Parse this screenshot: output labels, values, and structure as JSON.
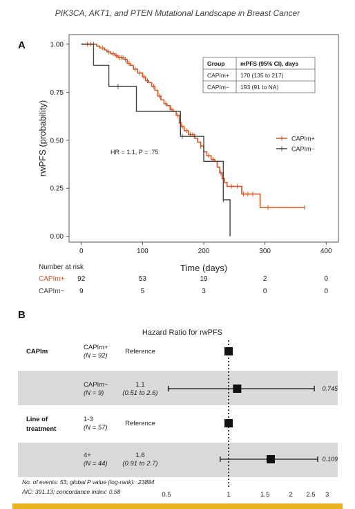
{
  "page_title": "PIK3CA, AKT1, and PTEN Mutational Landscape in Breast Cancer",
  "colors": {
    "capim_pos": "#d9541f",
    "capim_neg": "#444444",
    "shade": "#d9d9d9",
    "accent_bar": "#e8b321"
  },
  "chart_data": [
    {
      "type": "line",
      "subtype": "kaplan-meier",
      "panel_label": "A",
      "xlabel": "Time (days)",
      "ylabel": "rwPFS (probability)",
      "xlim": [
        -20,
        420
      ],
      "ylim": [
        -0.03,
        1.05
      ],
      "x_ticks": [
        0,
        100,
        200,
        300,
        400
      ],
      "y_ticks": [
        "0.00",
        "0.25",
        "0.50",
        "0.75",
        "1.00"
      ],
      "annotation": "HR = 1.1, P = .75",
      "legend_position": "right",
      "series": [
        {
          "name": "CAPIm+",
          "color": "#d9541f",
          "steps": [
            [
              0,
              1.0
            ],
            [
              25,
              0.99
            ],
            [
              30,
              0.98
            ],
            [
              38,
              0.97
            ],
            [
              42,
              0.96
            ],
            [
              48,
              0.95
            ],
            [
              55,
              0.94
            ],
            [
              60,
              0.93
            ],
            [
              70,
              0.92
            ],
            [
              75,
              0.9
            ],
            [
              80,
              0.89
            ],
            [
              85,
              0.87
            ],
            [
              92,
              0.85
            ],
            [
              100,
              0.83
            ],
            [
              105,
              0.81
            ],
            [
              110,
              0.8
            ],
            [
              115,
              0.78
            ],
            [
              120,
              0.76
            ],
            [
              125,
              0.73
            ],
            [
              130,
              0.71
            ],
            [
              135,
              0.69
            ],
            [
              140,
              0.68
            ],
            [
              145,
              0.66
            ],
            [
              150,
              0.65
            ],
            [
              155,
              0.63
            ],
            [
              160,
              0.59
            ],
            [
              163,
              0.57
            ],
            [
              168,
              0.55
            ],
            [
              175,
              0.53
            ],
            [
              185,
              0.51
            ],
            [
              190,
              0.49
            ],
            [
              195,
              0.47
            ],
            [
              200,
              0.44
            ],
            [
              205,
              0.42
            ],
            [
              212,
              0.4
            ],
            [
              218,
              0.39
            ],
            [
              222,
              0.36
            ],
            [
              226,
              0.33
            ],
            [
              230,
              0.3
            ],
            [
              234,
              0.28
            ],
            [
              238,
              0.26
            ],
            [
              262,
              0.22
            ],
            [
              292,
              0.15
            ],
            [
              365,
              0.15
            ]
          ],
          "censor_x": [
            10,
            15,
            20,
            35,
            45,
            52,
            57,
            62,
            65,
            68,
            72,
            78,
            88,
            95,
            102,
            108,
            118,
            128,
            138,
            147,
            157,
            165,
            172,
            178,
            182,
            195,
            208,
            215,
            228,
            245,
            255,
            265,
            272,
            280,
            305,
            365
          ]
        },
        {
          "name": "CAPIm−",
          "color": "#444444",
          "steps": [
            [
              0,
              1.0
            ],
            [
              20,
              0.89
            ],
            [
              45,
              0.78
            ],
            [
              90,
              0.65
            ],
            [
              162,
              0.52
            ],
            [
              200,
              0.39
            ],
            [
              232,
              0.19
            ],
            [
              243,
              0.0
            ]
          ],
          "censor_x": [
            60,
            165,
            232
          ]
        }
      ],
      "stats_table": {
        "headers": [
          "Group",
          "mPFS (95% CI), days"
        ],
        "rows": [
          [
            "CAPIm+",
            "170 (135 to 217)"
          ],
          [
            "CAPIm−",
            "193 (91 to NA)"
          ]
        ]
      },
      "risk_table": {
        "title": "Number at risk",
        "times": [
          0,
          100,
          200,
          300,
          400
        ],
        "rows": [
          {
            "label": "CAPIm+",
            "values": [
              "92",
              "53",
              "19",
              "2",
              "0"
            ]
          },
          {
            "label": "CAPIm−",
            "values": [
              "9",
              "5",
              "3",
              "0",
              "0"
            ]
          }
        ]
      }
    },
    {
      "type": "scatter",
      "subtype": "forest-plot",
      "panel_label": "B",
      "title": "Hazard Ratio for rwPFS",
      "x_scale": "log",
      "xlim": [
        0.5,
        3.2
      ],
      "x_ticks": [
        "0.5",
        "1",
        "1.5",
        "2",
        "2.5",
        "3"
      ],
      "x_tick_values": [
        0.5,
        1,
        1.5,
        2,
        2.5,
        3
      ],
      "reference_line": 1,
      "rows": [
        {
          "group": "CAPIm",
          "level": "CAPIm+",
          "n": "(N = 92)",
          "estimate_text": "Reference",
          "ci_text": "",
          "hr": 1.0,
          "lo": null,
          "hi": null,
          "p": "",
          "shaded": false
        },
        {
          "group": "",
          "level": "CAPIm−",
          "n": "(N = 9)",
          "estimate_text": "1.1",
          "ci_text": "(0.51 to 2.6)",
          "hr": 1.1,
          "lo": 0.51,
          "hi": 2.6,
          "p": "0.745",
          "shaded": true
        },
        {
          "group": "Line of treatment",
          "level": "1-3",
          "n": "(N = 57)",
          "estimate_text": "Reference",
          "ci_text": "",
          "hr": 1.0,
          "lo": null,
          "hi": null,
          "p": "",
          "shaded": false
        },
        {
          "group": "",
          "level": "4+",
          "n": "(N = 44)",
          "estimate_text": "1.6",
          "ci_text": "(0.91 to 2.7)",
          "hr": 1.6,
          "lo": 0.91,
          "hi": 2.7,
          "p": "0.109",
          "shaded": true
        }
      ],
      "footnote_lines": [
        "No. of events: 53; global P value (log-rank): .23884",
        "AIC: 391.13; concordance index: 0.58"
      ]
    }
  ]
}
